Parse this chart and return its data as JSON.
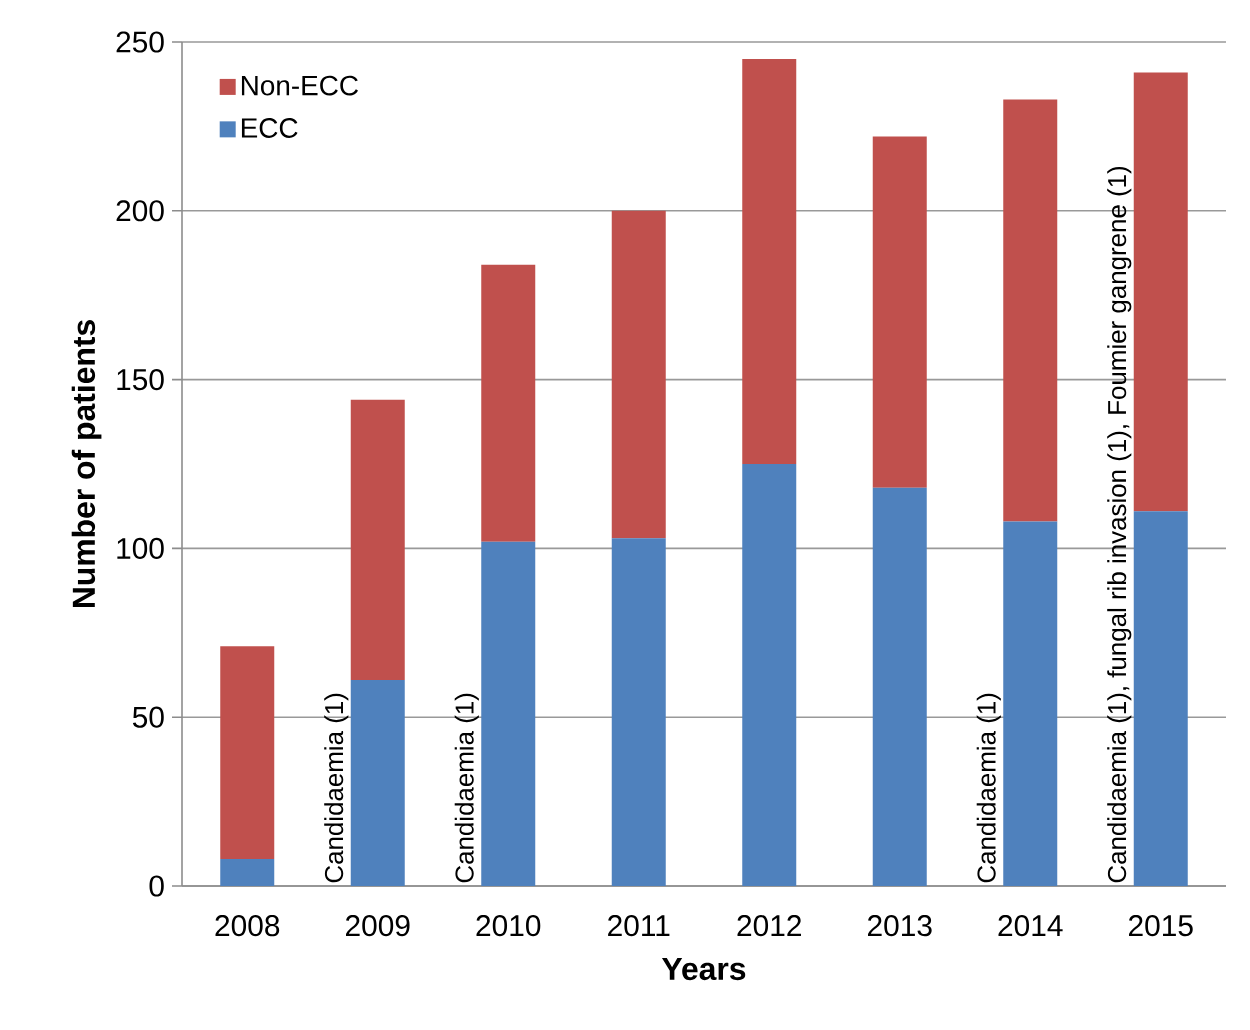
{
  "chart_data": {
    "type": "bar",
    "stacked": true,
    "xlabel": "Years",
    "ylabel": "Number of patients",
    "categories": [
      "2008",
      "2009",
      "2010",
      "2011",
      "2012",
      "2013",
      "2014",
      "2015"
    ],
    "series": [
      {
        "name": "ECC",
        "color": "#4f81bd",
        "values": [
          8,
          61,
          102,
          103,
          125,
          118,
          108,
          111
        ]
      },
      {
        "name": "Non-ECC",
        "color": "#c0504d",
        "values": [
          63,
          83,
          82,
          97,
          120,
          104,
          125,
          130
        ]
      }
    ],
    "ylim": [
      0,
      250
    ],
    "yticks": [
      0,
      50,
      100,
      150,
      200,
      250
    ],
    "grid": "y",
    "legend": "top left",
    "annotations": [
      {
        "text": "Candidaemia (1)",
        "x": "2009",
        "y": 0
      },
      {
        "text": "Candidaemia (1)",
        "x": "2010",
        "y": 0
      },
      {
        "text": "Candidaemia (1)",
        "x": "2014",
        "y": 0
      },
      {
        "text": "Candidaemia (1), fungal rib invasion (1), Foumier gangrene (1)",
        "x": "2015",
        "y": 0
      }
    ]
  }
}
